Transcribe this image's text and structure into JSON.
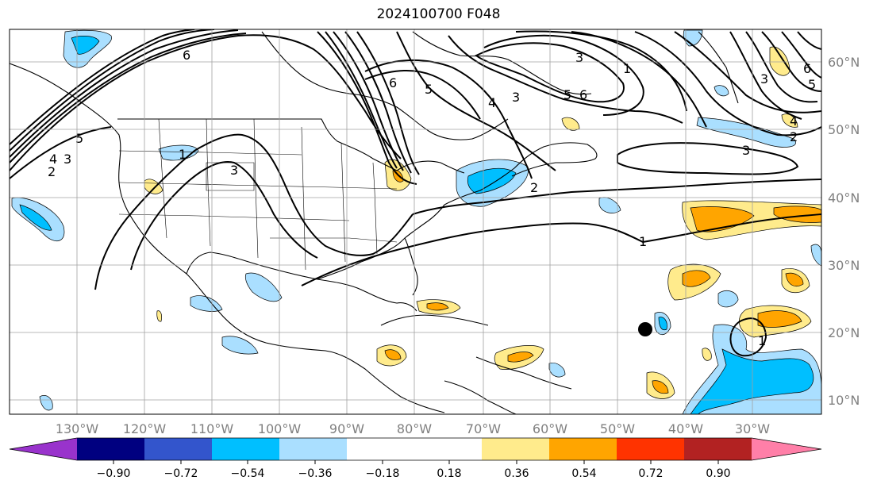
{
  "title": "2024100700 F048",
  "lon_labels": [
    "130°W",
    "120°W",
    "110°W",
    "100°W",
    "90°W",
    "80°W",
    "70°W",
    "60°W",
    "50°W",
    "40°W",
    "30°W"
  ],
  "lat_labels": [
    "60°N",
    "50°N",
    "40°N",
    "30°N",
    "20°N",
    "10°N"
  ],
  "colorbar": {
    "ticks": [
      "−0.90",
      "−0.72",
      "−0.54",
      "−0.36",
      "−0.18",
      "0.18",
      "0.36",
      "0.54",
      "0.72",
      "0.90"
    ],
    "colors": [
      "#9933cc",
      "#000080",
      "#3355cc",
      "#00bfff",
      "#aadfff",
      "#ffffff",
      "#ffeb8c",
      "#ffa500",
      "#ff3300",
      "#b22222",
      "#ff7fa8"
    ]
  },
  "contour_labels": [
    "2",
    "3",
    "4",
    "5",
    "6",
    "1",
    "3",
    "5",
    "6",
    "3",
    "6",
    "5",
    "4",
    "3",
    "2",
    "1",
    "3",
    "2",
    "1",
    "6",
    "5",
    "4",
    "3",
    "1"
  ],
  "colors": {
    "frame": "#000000",
    "grid": "#a0a0a0",
    "contour": "#000000"
  }
}
